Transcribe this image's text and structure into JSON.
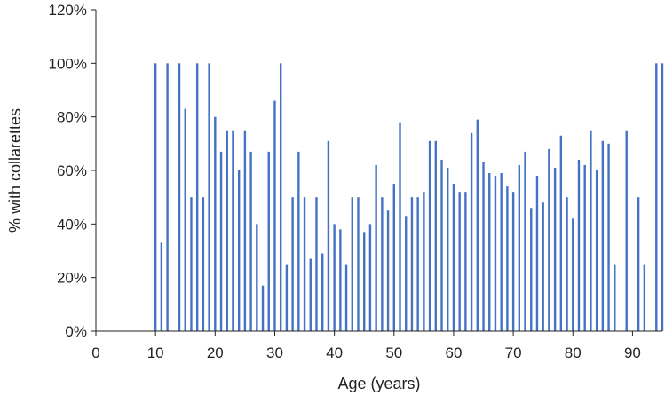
{
  "chart_data": {
    "type": "bar",
    "xlabel": "Age (years)",
    "ylabel": "% with collarettes",
    "xlim": [
      0,
      95
    ],
    "ylim": [
      0,
      120
    ],
    "x_ticks": [
      "0",
      "10",
      "20",
      "30",
      "40",
      "50",
      "60",
      "70",
      "80",
      "90"
    ],
    "y_ticks": [
      "0%",
      "20%",
      "40%",
      "60%",
      "80%",
      "100%",
      "120%"
    ],
    "bar_color": "#4472C4",
    "grid": false,
    "legend": "none",
    "x": [
      10,
      11,
      12,
      13,
      14,
      15,
      16,
      17,
      18,
      19,
      20,
      21,
      22,
      23,
      24,
      25,
      26,
      27,
      28,
      29,
      30,
      31,
      32,
      33,
      34,
      35,
      36,
      37,
      38,
      39,
      40,
      41,
      42,
      43,
      44,
      45,
      46,
      47,
      48,
      49,
      50,
      51,
      52,
      53,
      54,
      55,
      56,
      57,
      58,
      59,
      60,
      61,
      62,
      63,
      64,
      65,
      66,
      67,
      68,
      69,
      70,
      71,
      72,
      73,
      74,
      75,
      76,
      77,
      78,
      79,
      80,
      81,
      82,
      83,
      84,
      85,
      86,
      87,
      88,
      89,
      90,
      91,
      92,
      93,
      94,
      95
    ],
    "values": [
      100,
      33,
      100,
      0,
      100,
      83,
      50,
      100,
      50,
      100,
      80,
      67,
      75,
      75,
      60,
      75,
      67,
      40,
      17,
      67,
      86,
      100,
      25,
      50,
      67,
      50,
      27,
      50,
      29,
      71,
      40,
      38,
      25,
      50,
      50,
      37,
      40,
      62,
      50,
      45,
      55,
      78,
      43,
      50,
      50,
      52,
      71,
      71,
      64,
      61,
      55,
      52,
      52,
      74,
      79,
      63,
      59,
      58,
      59,
      54,
      52,
      62,
      67,
      46,
      58,
      48,
      68,
      61,
      73,
      50,
      42,
      64,
      62,
      75,
      60,
      71,
      70,
      25,
      0,
      75,
      0,
      50,
      25,
      0,
      100,
      100
    ]
  }
}
